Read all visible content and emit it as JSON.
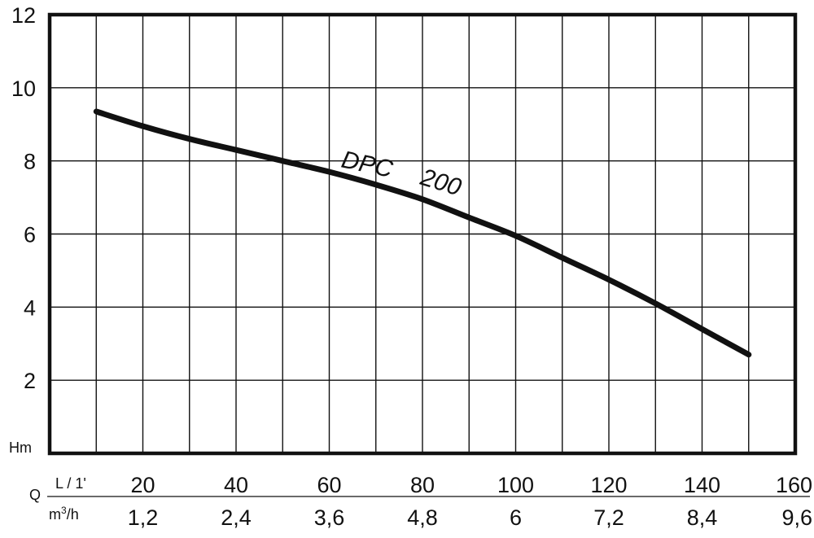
{
  "chart_data": {
    "type": "line",
    "y_unit_label": "Hm",
    "x_axis_rows": [
      {
        "row_label": "Q",
        "unit_label": "L / 1'",
        "ticks": [
          "20",
          "40",
          "60",
          "80",
          "100",
          "120",
          "140",
          "160"
        ]
      },
      {
        "unit_label": "m3/h",
        "ticks": [
          "1,2",
          "2,4",
          "3,6",
          "4,8",
          "6",
          "7,2",
          "8,4",
          "9,6"
        ]
      }
    ],
    "yticks": [
      "2",
      "4",
      "6",
      "8",
      "10",
      "12"
    ],
    "xlim": [
      0,
      160
    ],
    "ylim": [
      0,
      12
    ],
    "grid": true,
    "series": [
      {
        "name": "DPC 200",
        "label_parts": [
          "DPC",
          "200"
        ],
        "x": [
          10,
          20,
          30,
          40,
          50,
          60,
          70,
          80,
          90,
          100,
          110,
          120,
          130,
          140,
          150
        ],
        "y": [
          9.35,
          8.95,
          8.6,
          8.3,
          8.0,
          7.7,
          7.35,
          6.95,
          6.45,
          5.95,
          5.35,
          4.75,
          4.1,
          3.4,
          2.7
        ]
      }
    ],
    "colors": {
      "line": "#111111",
      "grid": "#111111",
      "frame": "#111111"
    }
  }
}
